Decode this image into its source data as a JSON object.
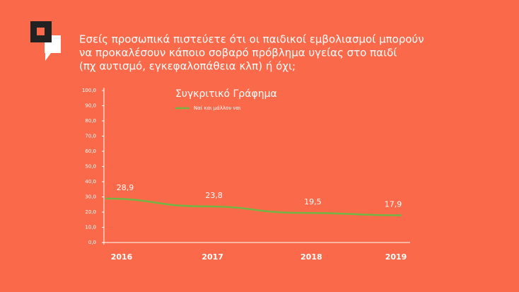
{
  "chart_data": {
    "type": "line",
    "title": [
      "Εσείς προσωπικά πιστεύετε ότι οι παιδικοί εμβολιασμοί μπορούν",
      "να προκαλέσουν κάποιο σοβαρό πρόβλημα υγείας στο παιδί",
      "(πχ αυτισμό, εγκεφαλοπάθεια κλπ) ή όχι;"
    ],
    "subtitle": "Συγκριτικό Γράφημα",
    "categories": [
      "2016",
      "2017",
      "2018",
      "2019"
    ],
    "series": [
      {
        "name": "Ναί και μάλλον ναι",
        "color": "#72b544",
        "values": [
          28.9,
          23.8,
          19.5,
          17.9
        ],
        "value_labels": [
          "28,9",
          "23,8",
          "19,5",
          "17,9"
        ]
      }
    ],
    "ylim": [
      0,
      100
    ],
    "yticks": [
      {
        "value": 0,
        "label": "0,0"
      },
      {
        "value": 10,
        "label": "10,0"
      },
      {
        "value": 20,
        "label": "20,0"
      },
      {
        "value": 30,
        "label": "30,0"
      },
      {
        "value": 40,
        "label": "40,0"
      },
      {
        "value": 50,
        "label": "50,0"
      },
      {
        "value": 60,
        "label": "60,0"
      },
      {
        "value": 70,
        "label": "70,0"
      },
      {
        "value": 80,
        "label": "80,0"
      },
      {
        "value": 90,
        "label": "90,0"
      },
      {
        "value": 100,
        "label": "100,0"
      }
    ],
    "legend": "top-left"
  }
}
